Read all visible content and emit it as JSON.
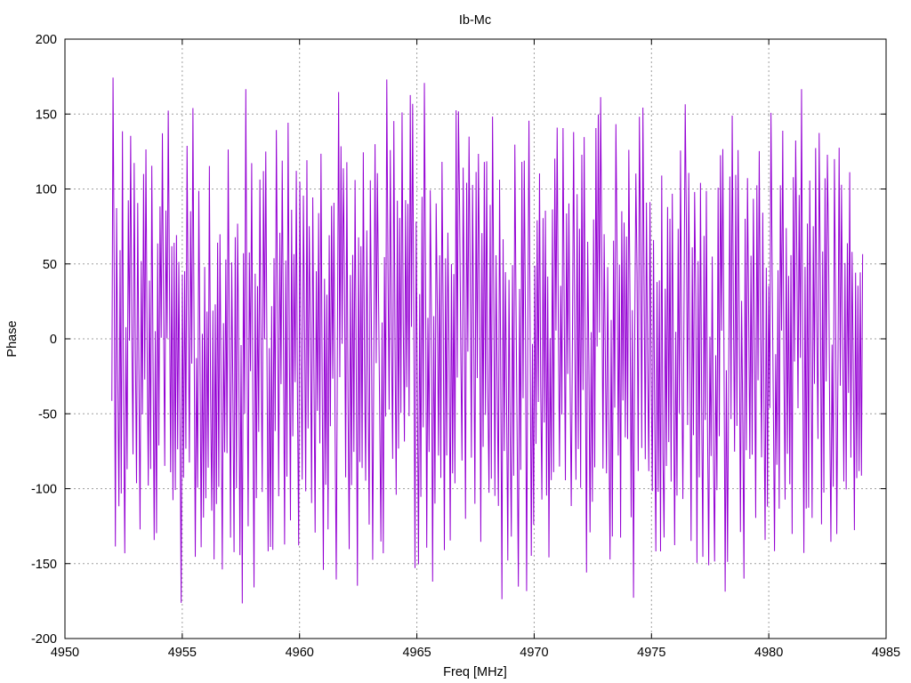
{
  "chart_data": {
    "type": "line",
    "title": "Ib-Mc",
    "xlabel": "Freq [MHz]",
    "ylabel": "Phase",
    "xlim": [
      4950,
      4985
    ],
    "ylim": [
      -200,
      200
    ],
    "x_ticks": [
      4950,
      4955,
      4960,
      4965,
      4970,
      4975,
      4980,
      4985
    ],
    "y_ticks": [
      200,
      150,
      100,
      50,
      0,
      -50,
      -100,
      -150,
      -200
    ],
    "grid": true,
    "legend": "none",
    "series": [
      {
        "color": "#9400d3",
        "x_start": 4952.0,
        "x_end": 4984.0,
        "points": 640,
        "amplitude_range": [
          -180,
          180
        ],
        "pattern": "rapid oscillation between about -180 and 180 degrees"
      }
    ]
  }
}
